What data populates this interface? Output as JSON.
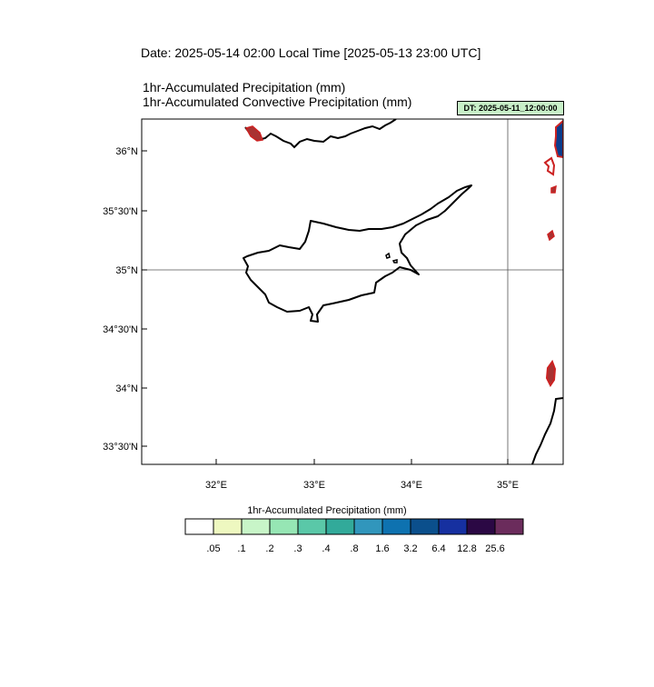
{
  "header": {
    "date_line": "Date: 2025-05-14  02:00 Local Time [2025-05-13  23:00 UTC]",
    "subtitle_1": "1hr-Accumulated Precipitation   (mm)",
    "subtitle_2": "1hr-Accumulated Convective Precipitation   (mm)",
    "dt_badge": "DT: 2025-05-11_12:00:00"
  },
  "map": {
    "region": "Cyprus and eastern Mediterranean",
    "lat_labels": [
      "36°N",
      "35°30'N",
      "35°N",
      "34°30'N",
      "34°N",
      "33°30'N"
    ],
    "lon_labels": [
      "32°E",
      "33°E",
      "34°E",
      "35°E"
    ],
    "gridlines": [
      "35°N",
      "35°E"
    ],
    "coastline_color": "#000000",
    "precip_cell_colors": {
      "outline": "#cc2222",
      "core": "#0b3c8c"
    }
  },
  "colorbar": {
    "title": "1hr-Accumulated Precipitation  (mm)",
    "levels": [
      ".05",
      ".1",
      ".2",
      ".3",
      ".4",
      ".8",
      "1.6",
      "3.2",
      "6.4",
      "12.8",
      "25.6"
    ],
    "colors": [
      "#ffffff",
      "#eef8c0",
      "#c8f5c8",
      "#96e6b4",
      "#5ac8a8",
      "#32aa9a",
      "#3196bc",
      "#0e72b0",
      "#0b4f8c",
      "#1630a0",
      "#2b0844",
      "#6b2c5c"
    ]
  }
}
